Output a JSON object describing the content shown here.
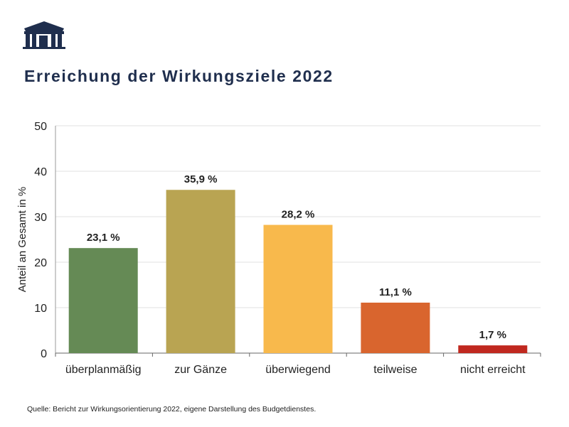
{
  "title": "Erreichung der Wirkungsziele 2022",
  "source": "Quelle: Bericht zur Wirkungsorientierung 2022, eigene Darstellung des Budgetdienstes.",
  "chart_data": {
    "type": "bar",
    "title": "Erreichung der Wirkungsziele 2022",
    "xlabel": "",
    "ylabel": "Anteil an Gesamt in %",
    "ylim": [
      0,
      50
    ],
    "yticks": [
      0,
      10,
      20,
      30,
      40,
      50
    ],
    "grid": true,
    "categories": [
      "überplanmäßig",
      "zur Gänze",
      "überwiegend",
      "teilweise",
      "nicht erreicht"
    ],
    "values": [
      23.1,
      35.9,
      28.2,
      11.1,
      1.7
    ],
    "data_labels": [
      "23,1 %",
      "35,9 %",
      "28,2 %",
      "11,1 %",
      "1,7 %"
    ],
    "colors": [
      "#658a55",
      "#b9a452",
      "#f8b94c",
      "#d9652e",
      "#c0281f"
    ]
  }
}
